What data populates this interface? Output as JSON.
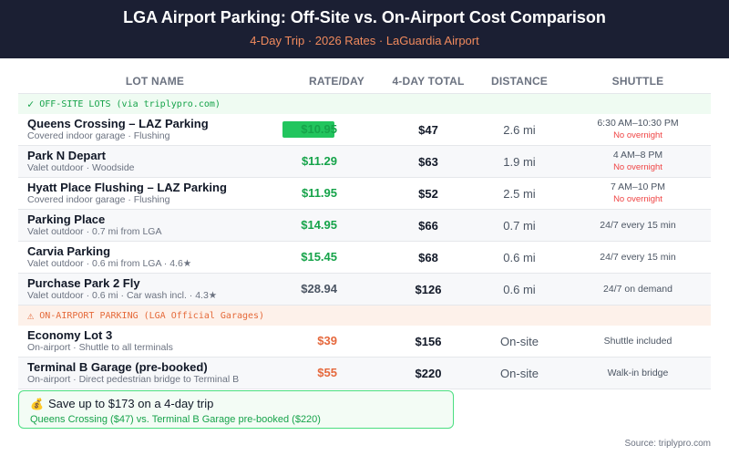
{
  "header": {
    "title": "LGA Airport Parking: Off-Site vs. On-Airport Cost Comparison",
    "subtitle": "4-Day Trip · 2026 Rates · LaGuardia Airport"
  },
  "columns": {
    "name": "LOT NAME",
    "rate": "RATE/DAY",
    "total": "4-DAY TOTAL",
    "distance": "DISTANCE",
    "shuttle": "SHUTTLE"
  },
  "offsite_section": {
    "icon": "✓",
    "label": "OFF-SITE LOTS (via triplypro.com)"
  },
  "offsite": [
    {
      "name": "Queens Crossing – LAZ Parking",
      "desc": "Covered indoor garage · Flushing",
      "rate": "$10.95",
      "total": "$47",
      "distance": "2.6 mi",
      "shuttle": "6:30 AM–10:30 PM",
      "shuttle_note": "No overnight"
    },
    {
      "name": "Park N Depart",
      "desc": "Valet outdoor · Woodside",
      "rate": "$11.29",
      "total": "$63",
      "distance": "1.9 mi",
      "shuttle": "4 AM–8 PM",
      "shuttle_note": "No overnight"
    },
    {
      "name": "Hyatt Place Flushing – LAZ Parking",
      "desc": "Covered indoor garage · Flushing",
      "rate": "$11.95",
      "total": "$52",
      "distance": "2.5 mi",
      "shuttle": "7 AM–10 PM",
      "shuttle_note": "No overnight"
    },
    {
      "name": "Parking Place",
      "desc": "Valet outdoor · 0.7 mi from LGA",
      "rate": "$14.95",
      "total": "$66",
      "distance": "0.7 mi",
      "shuttle": "24/7 every 15 min",
      "shuttle_note": ""
    },
    {
      "name": "Carvia Parking",
      "desc": "Valet outdoor · 0.6 mi from LGA · 4.6★",
      "rate": "$15.45",
      "total": "$68",
      "distance": "0.6 mi",
      "shuttle": "24/7 every 15 min",
      "shuttle_note": ""
    },
    {
      "name": "Purchase Park 2 Fly",
      "desc": "Valet outdoor · 0.6 mi · Car wash incl. · 4.3★",
      "rate": "$28.94",
      "total": "$126",
      "distance": "0.6 mi",
      "shuttle": "24/7 on demand",
      "shuttle_note": ""
    }
  ],
  "onairport_section": {
    "icon": "⚠",
    "label": "ON-AIRPORT PARKING (LGA Official Garages)"
  },
  "onairport": [
    {
      "name": "Economy Lot 3",
      "desc": "On-airport · Shuttle to all terminals",
      "rate": "$39",
      "total": "$156",
      "distance": "On-site",
      "shuttle": "Shuttle included",
      "shuttle_note": ""
    },
    {
      "name": "Terminal B Garage (pre-booked)",
      "desc": "On-airport · Direct pedestrian bridge to Terminal B",
      "rate": "$55",
      "total": "$220",
      "distance": "On-site",
      "shuttle": "Walk-in bridge",
      "shuttle_note": ""
    }
  ],
  "savings": {
    "icon": "💰",
    "title": "Save up to $173 on a 4-day trip",
    "detail": "Queens Crossing ($47) vs. Terminal B Garage pre-booked ($220)"
  },
  "source": "Source: triplypro.com",
  "colors": {
    "header_bg": "#1b1f33",
    "accent_orange": "#f08a5d",
    "rate_green": "#16a34a",
    "rate_orange": "#e5683c",
    "best_bar": "#22c55e"
  }
}
